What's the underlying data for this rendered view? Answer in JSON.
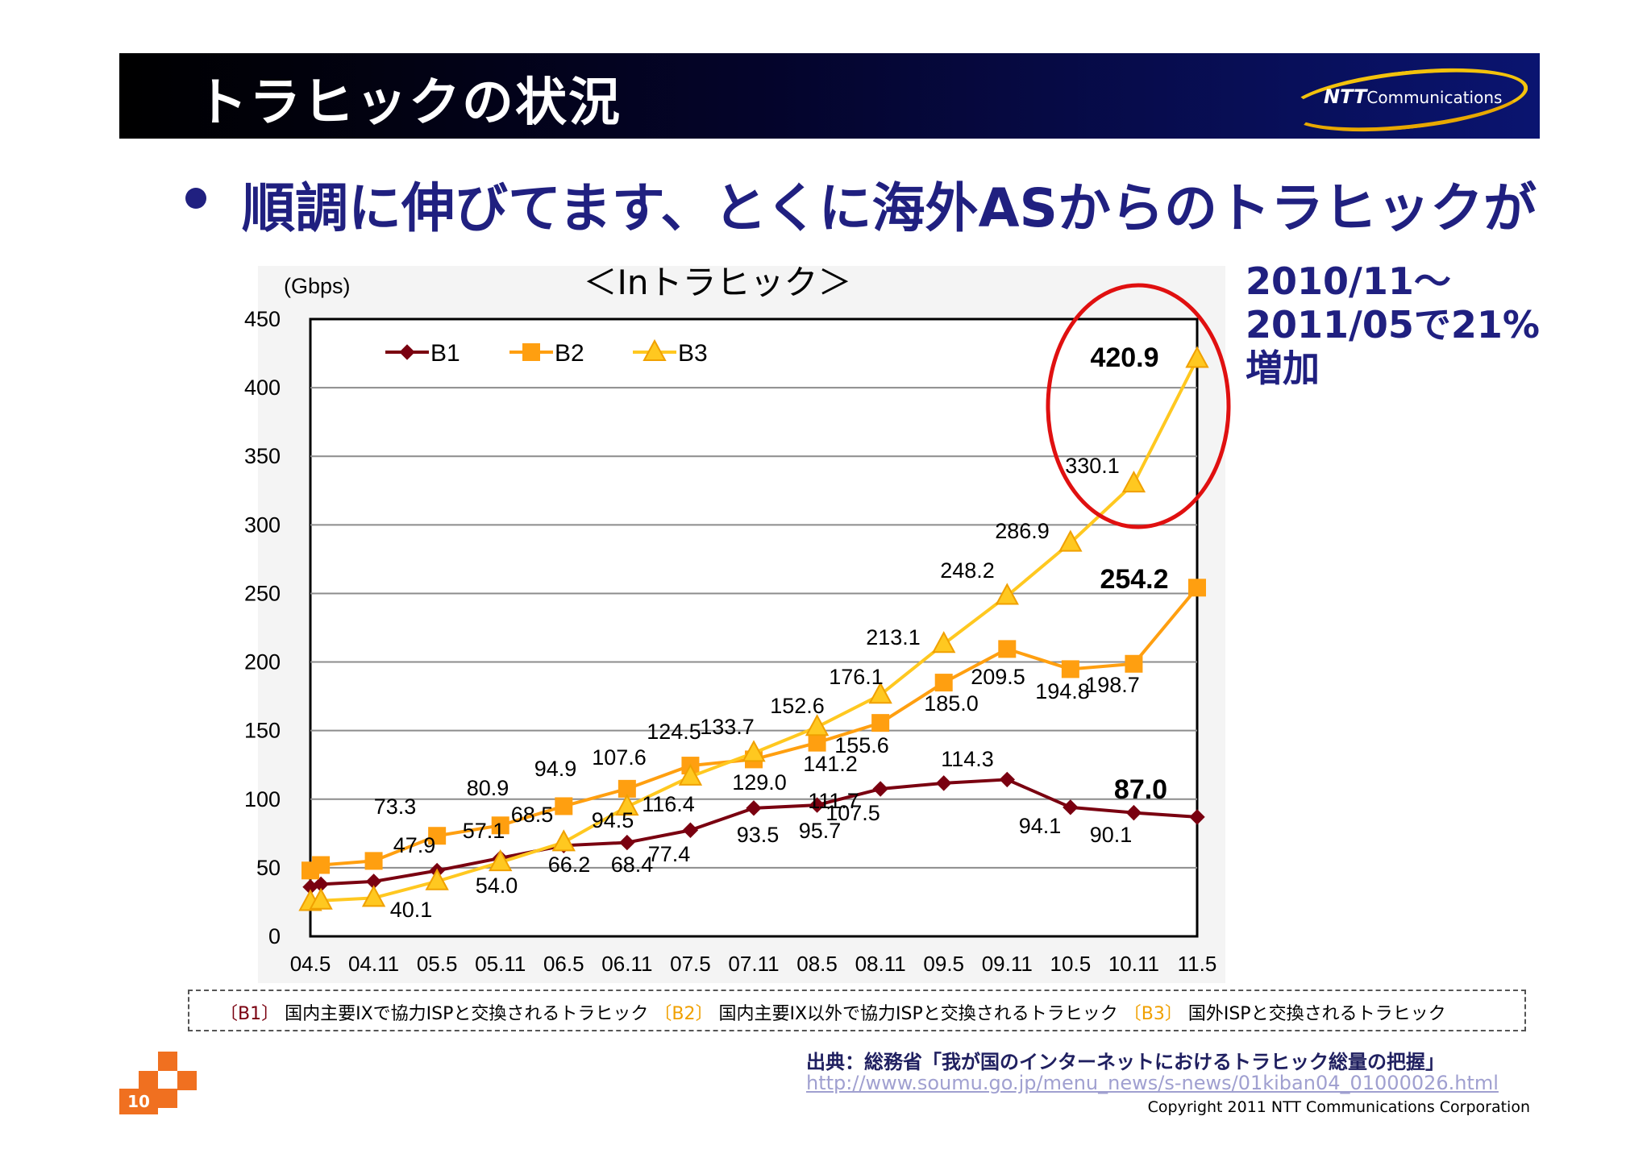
{
  "header": {
    "title": "トラヒックの状況",
    "logo_text_bold": "NTT",
    "logo_text": "Communications"
  },
  "bullet": "順調に伸びてます、とくに海外ASからのトラヒックが",
  "annotation": {
    "line1": "2010/11～",
    "line2": "2011/05で21%",
    "line3": "増加"
  },
  "legend_note": {
    "b1_tag": "〔B1〕",
    "b1_text": "国内主要IXで協力ISPと交換されるトラヒック",
    "b2_tag": "〔B2〕",
    "b2_text": "国内主要IX以外で協力ISPと交換されるトラヒック",
    "b3_tag": "〔B3〕",
    "b3_text": "国外ISPと交換されるトラヒック"
  },
  "source": "出典：総務省「我が国のインターネットにおけるトラヒック総量の把握」",
  "url": "http://www.soumu.go.jp/menu_news/s-news/01kiban04_01000026.html",
  "copyright": "Copyright 2011 NTT Communications Corporation",
  "page_number": "10",
  "colors": {
    "b1": "#7a0010",
    "b2": "#ff9f10",
    "b3": "#ffc820",
    "highlight": "#e01010"
  },
  "chart_data": {
    "type": "line",
    "title": "＜Inトラヒック＞",
    "ylabel": "(Gbps)",
    "ylim": [
      0,
      450
    ],
    "yticks": [
      0,
      50,
      100,
      150,
      200,
      250,
      300,
      350,
      400,
      450
    ],
    "grid": true,
    "legend": "top-left",
    "categories": [
      "04.5",
      "04.11",
      "05.5",
      "05.11",
      "06.5",
      "06.11",
      "07.5",
      "07.11",
      "08.5",
      "08.11",
      "09.5",
      "09.11",
      "10.5",
      "10.11",
      "11.5"
    ],
    "series": [
      {
        "name": "B1",
        "marker": "diamond",
        "color": "#7a0010",
        "x": [
          "04.5",
          "04.6",
          "04.11",
          "05.5",
          "05.11",
          "06.5",
          "06.11",
          "07.5",
          "07.11",
          "08.5",
          "08.11",
          "09.5",
          "09.11",
          "10.5",
          "10.11",
          "11.5"
        ],
        "values": [
          36,
          38,
          40,
          47.9,
          57.1,
          66.2,
          68.4,
          77.4,
          93.5,
          95.7,
          107.5,
          111.7,
          114.3,
          94.1,
          90.1,
          87.0
        ]
      },
      {
        "name": "B2",
        "marker": "square",
        "color": "#ff9f10",
        "x": [
          "04.5",
          "04.6",
          "04.11",
          "05.5",
          "05.11",
          "06.5",
          "06.11",
          "07.5",
          "07.11",
          "08.5",
          "08.11",
          "09.5",
          "09.11",
          "10.5",
          "10.11",
          "11.5"
        ],
        "values": [
          48,
          52,
          55,
          73.3,
          80.9,
          94.9,
          107.6,
          124.5,
          129.0,
          141.2,
          155.6,
          185.0,
          209.5,
          194.8,
          198.7,
          254.2
        ]
      },
      {
        "name": "B3",
        "marker": "triangle",
        "color": "#ffc820",
        "x": [
          "04.5",
          "04.6",
          "04.11",
          "05.5",
          "05.11",
          "06.5",
          "06.11",
          "07.5",
          "07.11",
          "08.5",
          "08.11",
          "09.5",
          "09.11",
          "10.5",
          "10.11",
          "11.5"
        ],
        "values": [
          25,
          26,
          28,
          40.1,
          54.0,
          68.5,
          94.5,
          116.4,
          133.7,
          152.6,
          176.1,
          213.1,
          248.2,
          286.9,
          330.1,
          420.9
        ]
      }
    ],
    "data_labels": [
      {
        "text": "420.9",
        "bold": true
      },
      {
        "text": "330.1"
      },
      {
        "text": "286.9"
      },
      {
        "text": "248.2"
      },
      {
        "text": "254.2",
        "bold": true
      },
      {
        "text": "213.1"
      },
      {
        "text": "176.1"
      },
      {
        "text": "209.5"
      },
      {
        "text": "152.6"
      },
      {
        "text": "185.0"
      },
      {
        "text": "194.8"
      },
      {
        "text": "198.7"
      },
      {
        "text": "124.5"
      },
      {
        "text": "133.7"
      },
      {
        "text": "155.6"
      },
      {
        "text": "107.6"
      },
      {
        "text": "141.2"
      },
      {
        "text": "94.9"
      },
      {
        "text": "114.3"
      },
      {
        "text": "129.0"
      },
      {
        "text": "87.0",
        "bold": true
      },
      {
        "text": "80.9"
      },
      {
        "text": "73.3"
      },
      {
        "text": "116.4"
      },
      {
        "text": "111.7"
      },
      {
        "text": "68.5"
      },
      {
        "text": "57.1"
      },
      {
        "text": "94.5"
      },
      {
        "text": "107.5"
      },
      {
        "text": "47.9"
      },
      {
        "text": "93.5"
      },
      {
        "text": "95.7"
      },
      {
        "text": "94.1"
      },
      {
        "text": "90.1"
      },
      {
        "text": "77.4"
      },
      {
        "text": "66.2"
      },
      {
        "text": "68.4"
      },
      {
        "text": "54.0"
      },
      {
        "text": "40.1"
      }
    ]
  }
}
